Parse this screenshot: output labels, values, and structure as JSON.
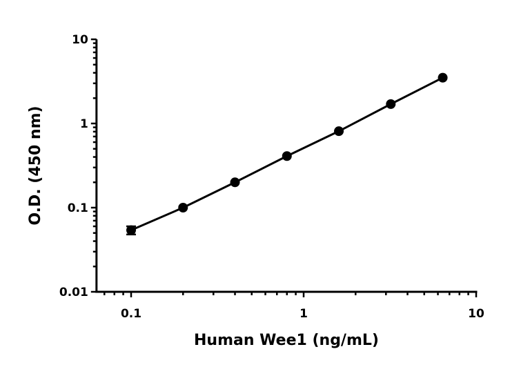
{
  "chart_data": {
    "type": "scatter",
    "title": "",
    "xlabel": "Human Wee1 (ng/mL)",
    "ylabel": "O.D. (450 nm)",
    "xscale": "log",
    "yscale": "log",
    "xlim": [
      0.063,
      10
    ],
    "ylim": [
      0.01,
      10
    ],
    "xticks": [
      "0.1",
      "1",
      "10"
    ],
    "yticks": [
      "0.01",
      "0.1",
      "1",
      "10"
    ],
    "grid": false,
    "fit_line": true,
    "color": "#000000",
    "points": [
      {
        "x": 0.1,
        "y": 0.054,
        "err": 0.006
      },
      {
        "x": 0.2,
        "y": 0.1
      },
      {
        "x": 0.4,
        "y": 0.2
      },
      {
        "x": 0.8,
        "y": 0.41
      },
      {
        "x": 1.6,
        "y": 0.81
      },
      {
        "x": 3.2,
        "y": 1.7
      },
      {
        "x": 6.4,
        "y": 3.5
      }
    ]
  }
}
